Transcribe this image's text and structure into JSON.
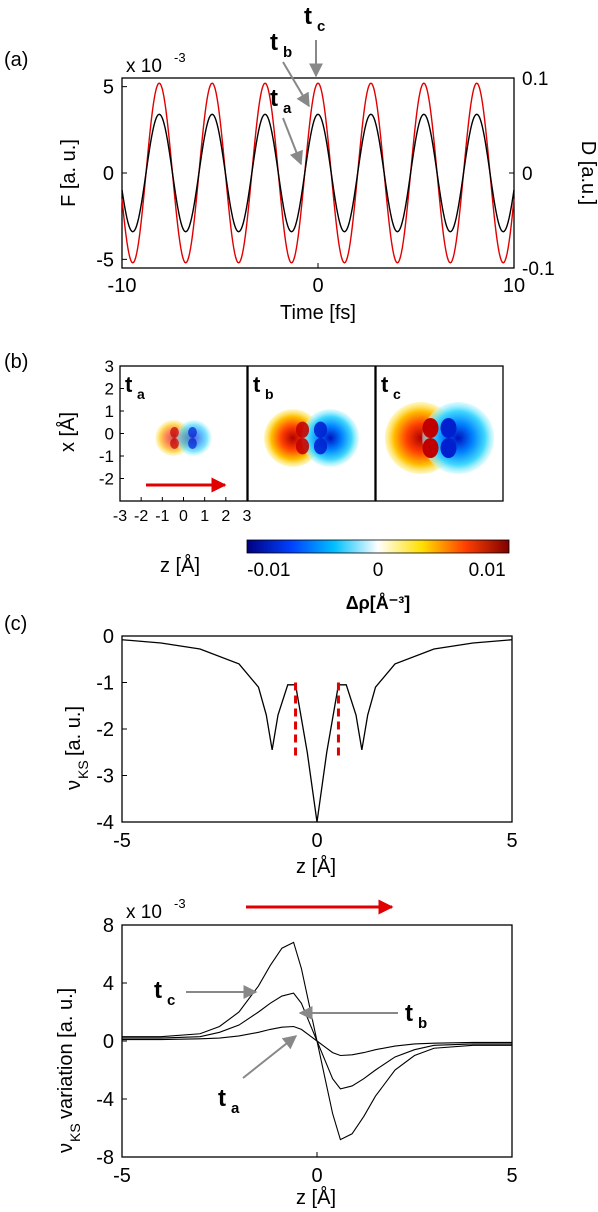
{
  "panel_a": {
    "label": "(a)",
    "scale_note": "x 10",
    "scale_exp": "-3",
    "ylabel_left": "F [a. u.]",
    "ylabel_right": "D [a.u.]",
    "xlabel": "Time [fs]",
    "xticks": [
      -10,
      0,
      10
    ],
    "yticks_left": [
      -5,
      0,
      5
    ],
    "yticks_right": [
      "-0.1",
      "0",
      "0.1"
    ],
    "markers": [
      {
        "name": "t",
        "sub": "c"
      },
      {
        "name": "t",
        "sub": "b"
      },
      {
        "name": "t",
        "sub": "a"
      }
    ]
  },
  "panel_b": {
    "label": "(b)",
    "ylabel": "x [Å]",
    "xlabel": "z [Å]",
    "yticks": [
      -2,
      -1,
      0,
      1,
      2,
      3
    ],
    "xticks": [
      -3,
      -2,
      -1,
      0,
      1,
      2,
      3
    ],
    "maps": [
      {
        "name": "t",
        "sub": "a"
      },
      {
        "name": "t",
        "sub": "b"
      },
      {
        "name": "t",
        "sub": "c"
      }
    ],
    "colorbar": {
      "ticks": [
        "-0.01",
        "0",
        "0.01"
      ],
      "label": "Δρ[Å⁻³]",
      "colors": [
        "#00007f",
        "#0040ff",
        "#00c0ff",
        "#ffffff",
        "#ffe000",
        "#ff4000",
        "#7f0000"
      ]
    }
  },
  "panel_c": {
    "label": "(c)",
    "top": {
      "ylabel_main": "ν",
      "ylabel_sub": "KS",
      "ylabel_rest": "[a. u.]",
      "xlabel": "z [Å]",
      "xticks": [
        -5,
        0,
        5
      ],
      "yticks": [
        0,
        -1,
        -2,
        -3,
        -4
      ]
    },
    "bottom": {
      "scale_note": "x 10",
      "scale_exp": "-3",
      "ylabel_main": "ν",
      "ylabel_sub": "KS",
      "ylabel_rest": " variation [a. u.]",
      "xlabel": "z [Å]",
      "xticks": [
        -5,
        0,
        5
      ],
      "yticks": [
        8,
        4,
        0,
        -4,
        -8
      ],
      "markers": [
        {
          "name": "t",
          "sub": "c"
        },
        {
          "name": "t",
          "sub": "b"
        },
        {
          "name": "t",
          "sub": "a"
        }
      ]
    }
  },
  "chart_data": [
    {
      "type": "line",
      "panel": "a",
      "xlabel": "Time [fs]",
      "ylabel": "F [a. u.]",
      "ylabel_right": "D [a.u.]",
      "xlim": [
        -10,
        10
      ],
      "ylim": [
        -5.5,
        5.5
      ],
      "ylim_right": [
        -0.1,
        0.1
      ],
      "y_scale_factor": "x 10^-3",
      "series": [
        {
          "color": "#e00000",
          "amplitude": 5.2,
          "period_fs": 2.7,
          "phase_peak_at": 0
        },
        {
          "color": "#000000",
          "amplitude": 3.4,
          "period_fs": 2.7,
          "phase_peak_at": 0
        }
      ]
    },
    {
      "type": "heatmap",
      "panel": "b",
      "xlabel": "z [Å]",
      "ylabel": "x [Å]",
      "xlim": [
        -3,
        3
      ],
      "ylim": [
        -3,
        3
      ],
      "color_range": [
        -0.01,
        0.01
      ],
      "colorbar_label": "Δρ[Å⁻³]",
      "maps": [
        "ta",
        "tb",
        "tc"
      ],
      "relative_amplitude": [
        0.25,
        0.7,
        1.0
      ]
    },
    {
      "type": "line",
      "panel": "c-top",
      "xlabel": "z [Å]",
      "ylabel": "νKS[a. u.]",
      "xlim": [
        -5,
        5
      ],
      "ylim": [
        -4,
        0
      ],
      "x": [
        -5,
        -4,
        -3,
        -2,
        -1.5,
        -1.3,
        -1.15,
        -1.0,
        -0.75,
        -0.55,
        -0.25,
        0,
        0.25,
        0.55,
        0.75,
        1.0,
        1.15,
        1.3,
        1.5,
        2,
        3,
        4,
        5
      ],
      "y": [
        -0.08,
        -0.15,
        -0.28,
        -0.6,
        -1.1,
        -1.7,
        -2.45,
        -1.7,
        -1.05,
        -1.05,
        -2.5,
        -4.0,
        -2.5,
        -1.05,
        -1.05,
        -1.7,
        -2.45,
        -1.7,
        -1.1,
        -0.6,
        -0.28,
        -0.15,
        -0.08
      ],
      "vlines": [
        -0.55,
        0.55
      ]
    },
    {
      "type": "line",
      "panel": "c-bottom",
      "xlabel": "z [Å]",
      "ylabel": "νKS variation [a. u.]",
      "xlim": [
        -5,
        5
      ],
      "ylim": [
        -8,
        8
      ],
      "y_scale_factor": "x 10^-3",
      "series": [
        {
          "name": "tc",
          "x": [
            -5,
            -4,
            -3,
            -2.5,
            -2,
            -1.5,
            -1.2,
            -0.9,
            -0.6,
            -0.4,
            -0.2,
            0,
            0.2,
            0.4,
            0.6,
            0.9,
            1.2,
            1.5,
            2,
            2.5,
            3,
            4,
            5
          ],
          "y": [
            0.3,
            0.3,
            0.5,
            1.0,
            2.0,
            3.8,
            5.2,
            6.4,
            6.8,
            5.0,
            2.5,
            0,
            -2.5,
            -5.0,
            -6.8,
            -6.4,
            -5.2,
            -3.8,
            -2.0,
            -1.0,
            -0.5,
            -0.3,
            -0.3
          ]
        },
        {
          "name": "tb",
          "x": [
            -5,
            -4,
            -3,
            -2.5,
            -2,
            -1.5,
            -1.2,
            -0.9,
            -0.6,
            -0.4,
            -0.2,
            0,
            0.2,
            0.4,
            0.6,
            0.9,
            1.2,
            1.5,
            2,
            2.5,
            3,
            4,
            5
          ],
          "y": [
            0.2,
            0.2,
            0.3,
            0.6,
            1.1,
            2.0,
            2.6,
            3.1,
            3.3,
            2.6,
            1.3,
            0,
            -1.3,
            -2.6,
            -3.3,
            -3.1,
            -2.6,
            -2.0,
            -1.1,
            -0.6,
            -0.3,
            -0.2,
            -0.2
          ]
        },
        {
          "name": "ta",
          "x": [
            -5,
            -4,
            -3,
            -2.5,
            -2,
            -1.5,
            -1.2,
            -0.9,
            -0.6,
            -0.4,
            -0.2,
            0,
            0.2,
            0.4,
            0.6,
            0.9,
            1.2,
            1.5,
            2,
            2.5,
            3,
            4,
            5
          ],
          "y": [
            0.1,
            0.1,
            0.15,
            0.2,
            0.35,
            0.6,
            0.8,
            0.95,
            1.0,
            0.8,
            0.4,
            0,
            -0.4,
            -0.8,
            -1.0,
            -0.95,
            -0.8,
            -0.6,
            -0.35,
            -0.2,
            -0.15,
            -0.1,
            -0.1
          ]
        }
      ]
    }
  ]
}
